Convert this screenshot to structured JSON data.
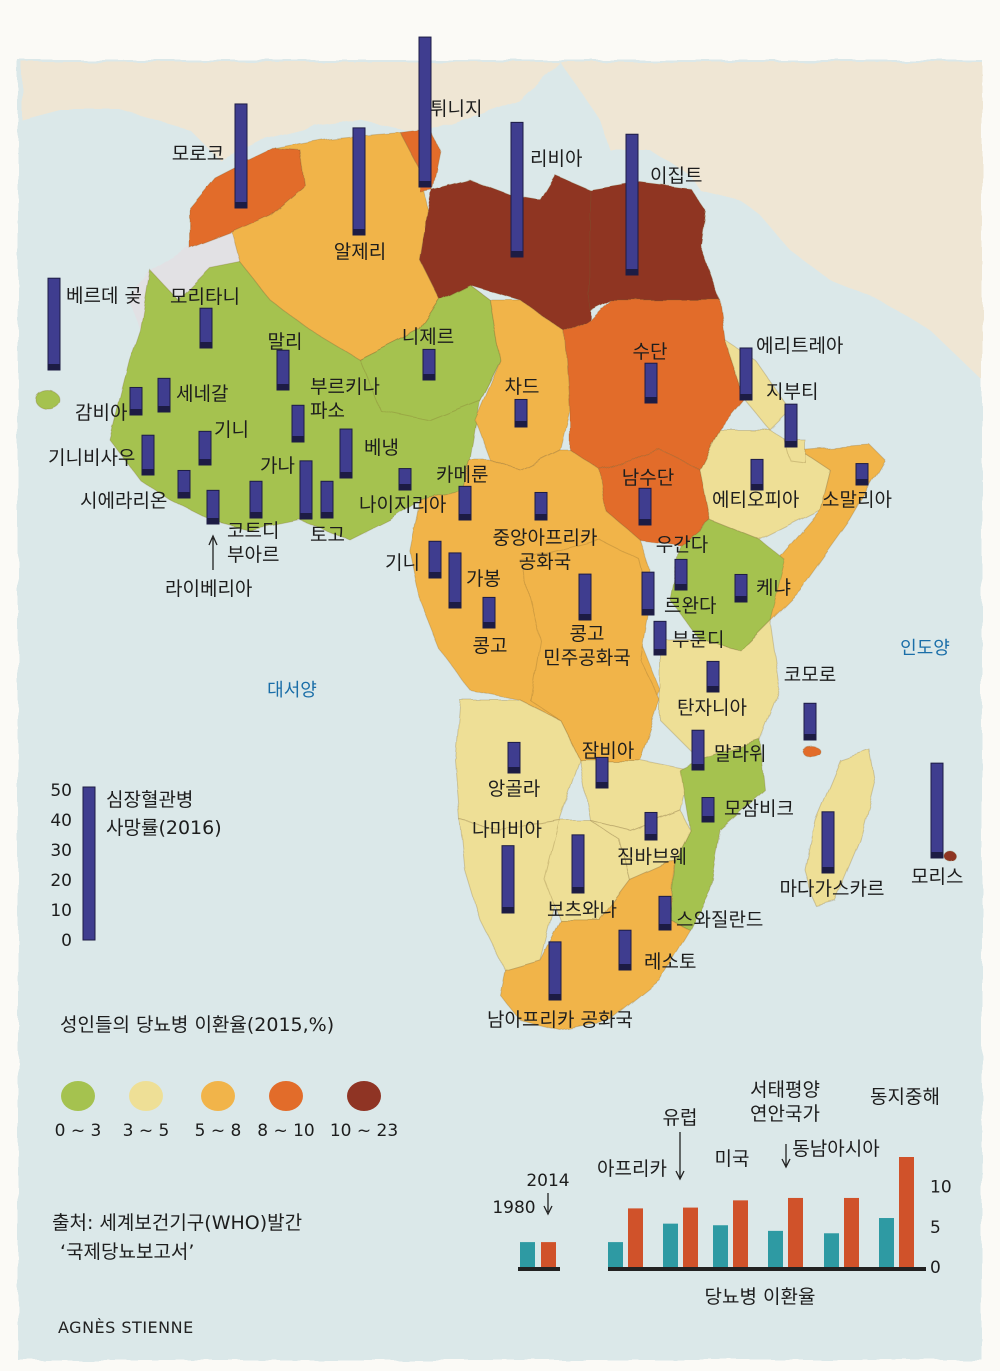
{
  "map": {
    "seas": {
      "atlantic": "대서양",
      "indian": "인도양"
    },
    "countries": [
      {
        "id": "morocco",
        "label": "모로코",
        "cvd": 34,
        "dm_class": 4
      },
      {
        "id": "algeria",
        "label": "알제리",
        "cvd": 35,
        "dm_class": 3
      },
      {
        "id": "tunisia",
        "label": "튀니지",
        "cvd": 49,
        "dm_class": 4
      },
      {
        "id": "libya",
        "label": "리비아",
        "cvd": 44,
        "dm_class": 5
      },
      {
        "id": "egypt",
        "label": "이집트",
        "cvd": 46,
        "dm_class": 5
      },
      {
        "id": "cape-verde",
        "label": "베르데 곶",
        "cvd": 30,
        "dm_class": 1
      },
      {
        "id": "mauritania",
        "label": "모리타니",
        "cvd": 13,
        "dm_class": 0
      },
      {
        "id": "mali",
        "label": "말리",
        "cvd": 13,
        "dm_class": 1
      },
      {
        "id": "niger",
        "label": "니제르",
        "cvd": 10,
        "dm_class": 1
      },
      {
        "id": "chad",
        "label": "차드",
        "cvd": 9,
        "dm_class": 3
      },
      {
        "id": "sudan",
        "label": "수단",
        "cvd": 13,
        "dm_class": 4
      },
      {
        "id": "eritrea",
        "label": "에리트레아",
        "cvd": 17,
        "dm_class": 2
      },
      {
        "id": "djibouti",
        "label": "지부티",
        "cvd": 14,
        "dm_class": 2
      },
      {
        "id": "senegal",
        "label": "세네갈",
        "cvd": 11,
        "dm_class": 1
      },
      {
        "id": "gambia",
        "label": "감비아",
        "cvd": 9,
        "dm_class": 1
      },
      {
        "id": "guinea-bissau",
        "label": "기니비사우",
        "cvd": 13,
        "dm_class": 1
      },
      {
        "id": "guinea",
        "label": "기니",
        "cvd": 11,
        "dm_class": 1
      },
      {
        "id": "burkina-faso",
        "label": "부르키나\n파소",
        "cvd": 12,
        "dm_class": 1
      },
      {
        "id": "benin",
        "label": "베냉",
        "cvd": 16,
        "dm_class": 1
      },
      {
        "id": "sierra-leone",
        "label": "시에라리온",
        "cvd": 9,
        "dm_class": 1
      },
      {
        "id": "ghana",
        "label": "가나",
        "cvd": 19,
        "dm_class": 1
      },
      {
        "id": "togo",
        "label": "토고",
        "cvd": 12,
        "dm_class": 1
      },
      {
        "id": "cote-divoire",
        "label": "코트디\n부아르",
        "cvd": 12,
        "dm_class": 1
      },
      {
        "id": "liberia",
        "label": "라이베리아",
        "cvd": 11,
        "dm_class": 1
      },
      {
        "id": "nigeria",
        "label": "나이지리아",
        "cvd": 7,
        "dm_class": 1
      },
      {
        "id": "cameroon",
        "label": "카메룬",
        "cvd": 11,
        "dm_class": 3
      },
      {
        "id": "car",
        "label": "중앙아프리카\n공화국",
        "cvd": 9,
        "dm_class": 3
      },
      {
        "id": "south-sudan",
        "label": "남수단",
        "cvd": 12,
        "dm_class": 4
      },
      {
        "id": "ethiopia",
        "label": "에티오피아",
        "cvd": 10,
        "dm_class": 2
      },
      {
        "id": "somalia",
        "label": "소말리아",
        "cvd": 7,
        "dm_class": 3
      },
      {
        "id": "eq-guinea",
        "label": "기니",
        "cvd": 12,
        "dm_class": 3
      },
      {
        "id": "gabon",
        "label": "가봉",
        "cvd": 18,
        "dm_class": 3
      },
      {
        "id": "congo",
        "label": "콩고",
        "cvd": 10,
        "dm_class": 3
      },
      {
        "id": "drc",
        "label": "콩고\n민주공화국",
        "cvd": 15,
        "dm_class": 3
      },
      {
        "id": "uganda",
        "label": "우간다",
        "cvd": 10,
        "dm_class": 1
      },
      {
        "id": "kenya",
        "label": "케냐",
        "cvd": 9,
        "dm_class": 1
      },
      {
        "id": "rwanda",
        "label": "르완다",
        "cvd": 14,
        "dm_class": 1
      },
      {
        "id": "burundi",
        "label": "부룬디",
        "cvd": 11,
        "dm_class": 1
      },
      {
        "id": "tanzania",
        "label": "탄자니아",
        "cvd": 10,
        "dm_class": 2
      },
      {
        "id": "comoros",
        "label": "코모로",
        "cvd": 12,
        "dm_class": 4
      },
      {
        "id": "angola",
        "label": "앙골라",
        "cvd": 10,
        "dm_class": 2
      },
      {
        "id": "zambia",
        "label": "잠비아",
        "cvd": 10,
        "dm_class": 2
      },
      {
        "id": "malawi",
        "label": "말라위",
        "cvd": 13,
        "dm_class": 2
      },
      {
        "id": "mozambique",
        "label": "모잠비크",
        "cvd": 8,
        "dm_class": 1
      },
      {
        "id": "namibia",
        "label": "나미비아",
        "cvd": 22,
        "dm_class": 2
      },
      {
        "id": "zimbabwe",
        "label": "짐바브웨",
        "cvd": 9,
        "dm_class": 2
      },
      {
        "id": "botswana",
        "label": "보츠와나",
        "cvd": 19,
        "dm_class": 2
      },
      {
        "id": "madagascar",
        "label": "마다가스카르",
        "cvd": 20,
        "dm_class": 2
      },
      {
        "id": "mauritius",
        "label": "모리스",
        "cvd": 31,
        "dm_class": 5
      },
      {
        "id": "swaziland",
        "label": "스와질란드",
        "cvd": 11,
        "dm_class": 1
      },
      {
        "id": "lesotho",
        "label": "레소토",
        "cvd": 13,
        "dm_class": 2
      },
      {
        "id": "south-africa",
        "label": "남아프리카 공화국",
        "cvd": 19,
        "dm_class": 3
      }
    ]
  },
  "scale": {
    "title_line1": "심장혈관병",
    "title_line2": "사망률(2016)",
    "ticks": [
      "50",
      "40",
      "30",
      "20",
      "10",
      "0"
    ]
  },
  "legend": {
    "title": "성인들의 당뇨병 이환율(2015,%)",
    "classes": [
      {
        "label": "0 ~ 3",
        "color": "#a5c24f"
      },
      {
        "label": "3 ~ 5",
        "color": "#eedf96"
      },
      {
        "label": "5 ~ 8",
        "color": "#f1b44a"
      },
      {
        "label": "8 ~ 10",
        "color": "#e26c2a"
      },
      {
        "label": "10 ~ 23",
        "color": "#8f3424"
      }
    ]
  },
  "chart_data": {
    "type": "bar",
    "xlabel": "당뇨병 이환율",
    "ylim": [
      0,
      14
    ],
    "yticks": [
      "10",
      "5",
      "0"
    ],
    "key_labels": {
      "y1980": "1980",
      "y2014": "2014"
    },
    "categories": [
      "아프리카",
      "유럽",
      "미국",
      "서태평양\n연안국가",
      "동남아시아",
      "동지중해"
    ],
    "series": [
      {
        "name": "1980",
        "color": "#2e9aa3",
        "values": [
          3.1,
          5.4,
          5.2,
          4.5,
          4.2,
          6.1
        ]
      },
      {
        "name": "2014",
        "color": "#d0522a",
        "values": [
          7.3,
          7.4,
          8.3,
          8.6,
          8.6,
          13.7
        ]
      }
    ]
  },
  "source": {
    "line1": "출처: 세계보건기구(WHO)발간",
    "line2": "‘국제당뇨보고서’"
  },
  "credit": "AGNÈS STIENNE",
  "colors": {
    "bar_fill": "#3f3d8f",
    "bar_dark": "#1d1c44",
    "sea": "#dbe8e9",
    "land_other": "#efe6d4",
    "western_sahara": "#e2e1e4"
  }
}
